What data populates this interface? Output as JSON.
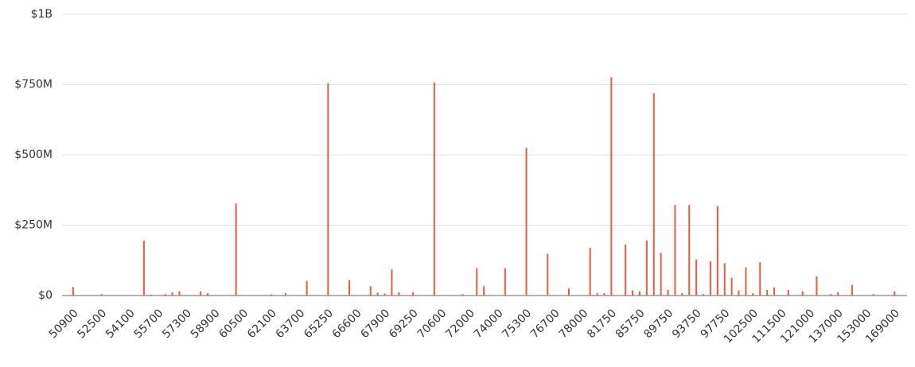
{
  "chart_data": {
    "type": "bar",
    "categories": [
      "50900",
      null,
      null,
      null,
      "52500",
      null,
      null,
      null,
      "54100",
      null,
      null,
      null,
      "55700",
      null,
      null,
      null,
      "57300",
      null,
      null,
      null,
      "58900",
      null,
      null,
      null,
      "60500",
      null,
      null,
      null,
      "62100",
      null,
      null,
      null,
      "63700",
      null,
      null,
      null,
      "65250",
      null,
      null,
      null,
      "66600",
      null,
      null,
      null,
      "67900",
      null,
      null,
      null,
      "69250",
      null,
      null,
      null,
      "70600",
      null,
      null,
      null,
      "72000",
      null,
      null,
      null,
      "74000",
      null,
      null,
      null,
      "75300",
      null,
      null,
      null,
      "76700",
      null,
      null,
      null,
      "78000",
      null,
      null,
      null,
      "81750",
      null,
      null,
      null,
      "85750",
      null,
      null,
      null,
      "89750",
      null,
      null,
      null,
      "93750",
      null,
      null,
      null,
      "97750",
      null,
      null,
      null,
      "102500",
      null,
      null,
      null,
      "111500",
      null,
      null,
      null,
      "121000",
      null,
      null,
      null,
      "137000",
      null,
      null,
      null,
      "153000",
      null,
      null,
      null,
      "169000"
    ],
    "values": [
      30000000,
      0,
      0,
      0,
      5000000,
      0,
      0,
      0,
      0,
      0,
      195000000,
      3000000,
      0,
      5000000,
      12000000,
      15000000,
      0,
      0,
      15000000,
      8000000,
      0,
      0,
      0,
      327000000,
      0,
      0,
      0,
      0,
      4000000,
      0,
      8000000,
      0,
      0,
      52000000,
      0,
      0,
      755000000,
      0,
      0,
      55000000,
      0,
      0,
      33000000,
      10000000,
      7000000,
      93000000,
      12000000,
      0,
      12000000,
      0,
      0,
      758000000,
      0,
      0,
      0,
      5000000,
      0,
      97000000,
      33000000,
      0,
      0,
      97000000,
      0,
      0,
      525000000,
      0,
      0,
      148000000,
      0,
      0,
      25000000,
      0,
      0,
      170000000,
      8000000,
      8000000,
      776000000,
      0,
      182000000,
      18000000,
      15000000,
      196000000,
      720000000,
      152000000,
      20000000,
      322000000,
      8000000,
      322000000,
      128000000,
      5000000,
      122000000,
      318000000,
      115000000,
      63000000,
      18000000,
      100000000,
      8000000,
      118000000,
      20000000,
      28000000,
      0,
      20000000,
      0,
      15000000,
      0,
      68000000,
      0,
      5000000,
      12000000,
      0,
      38000000,
      0,
      0,
      5000000,
      0,
      0,
      15000000
    ],
    "color": "#ef5a42",
    "ylim": [
      0,
      1000000000
    ],
    "yticks": [
      {
        "value": 0,
        "label": "$0"
      },
      {
        "value": 250000000,
        "label": "$250M"
      },
      {
        "value": 500000000,
        "label": "$500M"
      },
      {
        "value": 750000000,
        "label": "$750M"
      },
      {
        "value": 1000000000,
        "label": "$1B"
      }
    ],
    "grid": true
  }
}
